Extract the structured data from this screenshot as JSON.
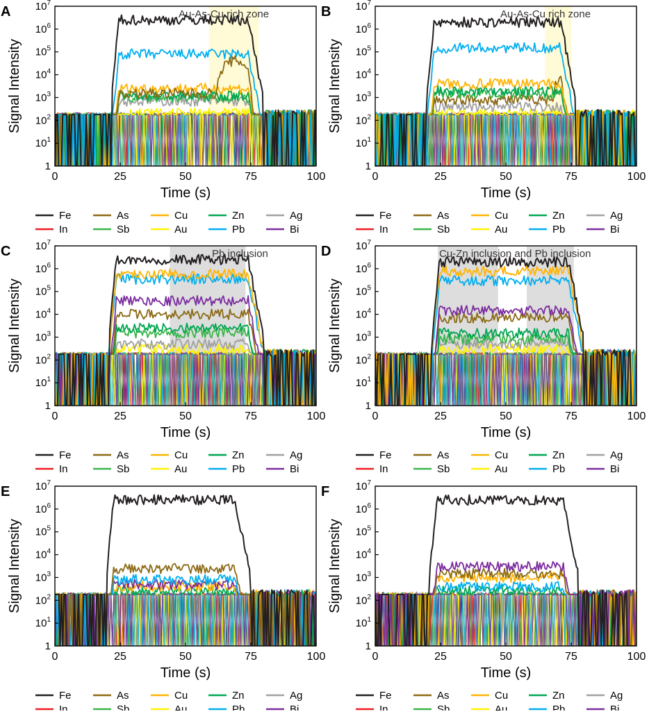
{
  "legend": {
    "rows": [
      [
        {
          "name": "Fe",
          "color": "#231f20"
        },
        {
          "name": "As",
          "color": "#8b6914"
        },
        {
          "name": "Cu",
          "color": "#ffb300"
        },
        {
          "name": "Zn",
          "color": "#00a651"
        },
        {
          "name": "Ag",
          "color": "#a0a0a0"
        }
      ],
      [
        {
          "name": "In",
          "color": "#ed1c24"
        },
        {
          "name": "Sb",
          "color": "#39b54a"
        },
        {
          "name": "Au",
          "color": "#fff200"
        },
        {
          "name": "Pb",
          "color": "#00aeef"
        },
        {
          "name": "Bi",
          "color": "#7b2c9e"
        }
      ]
    ]
  },
  "chart_data": [
    {
      "panel": "A",
      "type": "line",
      "yscale": "log",
      "xlabel": "Time (s)",
      "ylabel": "Signal Intensity",
      "xlim": [
        0,
        100
      ],
      "ylim": [
        1,
        10000000
      ],
      "xticks": [
        "0",
        "25",
        "50",
        "75",
        "100"
      ],
      "yticks": [
        "1",
        "10",
        "100",
        "1000",
        "10000",
        "100000",
        "1000000",
        "10000000"
      ],
      "onset": 22,
      "end": 80,
      "noise_level": 180,
      "highlight": {
        "from": 59,
        "to": 78,
        "color": "#fffbd1",
        "label": "Au-As-Cu rich zone"
      },
      "series": [
        {
          "name": "Fe",
          "level": 2500000,
          "color": "#231f20"
        },
        {
          "name": "Pb",
          "level": 80000,
          "color": "#00aeef"
        },
        {
          "name": "As",
          "level": 1500,
          "color": "#8b6914",
          "bump": {
            "from": 62,
            "to": 76,
            "peak": 40000
          }
        },
        {
          "name": "Cu",
          "level": 2500,
          "color": "#ffb300"
        },
        {
          "name": "Zn",
          "level": 1200,
          "color": "#00a651"
        },
        {
          "name": "Sb",
          "level": 1000,
          "color": "#39b54a"
        },
        {
          "name": "Ag",
          "level": 700,
          "color": "#a0a0a0"
        },
        {
          "name": "Au",
          "level": 200,
          "color": "#fff200"
        }
      ]
    },
    {
      "panel": "B",
      "type": "line",
      "yscale": "log",
      "xlabel": "Time (s)",
      "ylabel": "Signal Intensity",
      "xlim": [
        0,
        100
      ],
      "ylim": [
        1,
        10000000
      ],
      "xticks": [
        "0",
        "25",
        "50",
        "75",
        "100"
      ],
      "yticks": [
        "1",
        "10",
        "100",
        "1000",
        "10000",
        "100000",
        "1000000",
        "10000000"
      ],
      "onset": 20,
      "end": 77,
      "noise_level": 180,
      "highlight": {
        "from": 65,
        "to": 75,
        "color": "#fffbd1",
        "label": "Au-As-Cu rich zone"
      },
      "series": [
        {
          "name": "Fe",
          "level": 2000000,
          "color": "#231f20"
        },
        {
          "name": "Pb",
          "level": 150000,
          "color": "#00aeef"
        },
        {
          "name": "Cu",
          "level": 4000,
          "color": "#ffb300"
        },
        {
          "name": "Zn",
          "level": 2000,
          "color": "#00a651"
        },
        {
          "name": "Sb",
          "level": 1500,
          "color": "#39b54a"
        },
        {
          "name": "As",
          "level": 800,
          "color": "#8b6914",
          "bump": {
            "from": 68,
            "to": 74,
            "peak": 8000
          }
        },
        {
          "name": "Ag",
          "level": 400,
          "color": "#a0a0a0"
        },
        {
          "name": "Au",
          "level": 200,
          "color": "#fff200"
        }
      ]
    },
    {
      "panel": "C",
      "type": "line",
      "yscale": "log",
      "xlabel": "Time (s)",
      "ylabel": "Signal Intensity",
      "xlim": [
        0,
        100
      ],
      "ylim": [
        1,
        10000000
      ],
      "xticks": [
        "0",
        "25",
        "50",
        "75",
        "100"
      ],
      "yticks": [
        "1",
        "10",
        "100",
        "1000",
        "10000",
        "100000",
        "1000000",
        "10000000"
      ],
      "onset": 21,
      "end": 80,
      "noise_level": 180,
      "highlight": {
        "from": 44,
        "to": 73,
        "color": "#d9d9d9",
        "label": "Pb inclusion"
      },
      "series": [
        {
          "name": "Fe",
          "level": 2500000,
          "color": "#231f20"
        },
        {
          "name": "Cu",
          "level": 600000,
          "color": "#ffb300"
        },
        {
          "name": "Pb",
          "level": 350000,
          "color": "#00aeef"
        },
        {
          "name": "Bi",
          "level": 40000,
          "color": "#7b2c9e"
        },
        {
          "name": "As",
          "level": 10000,
          "color": "#8b6914"
        },
        {
          "name": "Zn",
          "level": 2500,
          "color": "#00a651"
        },
        {
          "name": "Sb",
          "level": 1500,
          "color": "#39b54a"
        },
        {
          "name": "Ag",
          "level": 500,
          "color": "#a0a0a0"
        },
        {
          "name": "Au",
          "level": 300,
          "color": "#fff200"
        }
      ]
    },
    {
      "panel": "D",
      "type": "line",
      "yscale": "log",
      "xlabel": "Time (s)",
      "ylabel": "Signal Intensity",
      "xlim": [
        0,
        100
      ],
      "ylim": [
        1,
        10000000
      ],
      "xticks": [
        "0",
        "25",
        "50",
        "75",
        "100"
      ],
      "yticks": [
        "1",
        "10",
        "100",
        "1000",
        "10000",
        "100000",
        "1000000",
        "10000000"
      ],
      "onset": 22,
      "end": 80,
      "noise_level": 180,
      "highlight": {
        "from": 24,
        "to": 76,
        "color": "#d9d9d9",
        "label": "Cu-Zn inclusion and Pb inclusion",
        "gap": [
          47,
          58
        ]
      },
      "series": [
        {
          "name": "Fe",
          "level": 2000000,
          "color": "#231f20"
        },
        {
          "name": "Cu",
          "level": 800000,
          "color": "#ffb300"
        },
        {
          "name": "Pb",
          "level": 300000,
          "color": "#00aeef"
        },
        {
          "name": "Bi",
          "level": 15000,
          "color": "#7b2c9e"
        },
        {
          "name": "As",
          "level": 7000,
          "color": "#8b6914"
        },
        {
          "name": "Zn",
          "level": 1500,
          "color": "#00a651"
        },
        {
          "name": "Sb",
          "level": 800,
          "color": "#39b54a"
        },
        {
          "name": "Ag",
          "level": 500,
          "color": "#a0a0a0"
        },
        {
          "name": "Au",
          "level": 300,
          "color": "#fff200"
        }
      ]
    },
    {
      "panel": "E",
      "type": "line",
      "yscale": "log",
      "xlabel": "Time (s)",
      "ylabel": "Signal Intensity",
      "xlim": [
        0,
        100
      ],
      "ylim": [
        1,
        10000000
      ],
      "xticks": [
        "0",
        "25",
        "50",
        "75",
        "100"
      ],
      "yticks": [
        "1",
        "10",
        "100",
        "1000",
        "10000",
        "100000",
        "1000000",
        "10000000"
      ],
      "onset": 20,
      "end": 75,
      "noise_level": 180,
      "series": [
        {
          "name": "Fe",
          "level": 2500000,
          "color": "#231f20"
        },
        {
          "name": "As",
          "level": 2500,
          "color": "#8b6914"
        },
        {
          "name": "Pb",
          "level": 800,
          "color": "#00aeef"
        },
        {
          "name": "Bi",
          "level": 500,
          "color": "#7b2c9e"
        },
        {
          "name": "Cu",
          "level": 400,
          "color": "#ffb300"
        },
        {
          "name": "Zn",
          "level": 250,
          "color": "#00a651"
        }
      ]
    },
    {
      "panel": "F",
      "type": "line",
      "yscale": "log",
      "xlabel": "Time (s)",
      "ylabel": "Signal Intensity",
      "xlim": [
        0,
        100
      ],
      "ylim": [
        1,
        10000000
      ],
      "xticks": [
        "0",
        "25",
        "50",
        "75",
        "100"
      ],
      "yticks": [
        "1",
        "10",
        "100",
        "1000",
        "10000",
        "100000",
        "1000000",
        "10000000"
      ],
      "onset": 21,
      "end": 78,
      "noise_level": 180,
      "series": [
        {
          "name": "Fe",
          "level": 2500000,
          "color": "#231f20"
        },
        {
          "name": "Bi",
          "level": 3000,
          "color": "#7b2c9e"
        },
        {
          "name": "As",
          "level": 1500,
          "color": "#8b6914"
        },
        {
          "name": "Cu",
          "level": 1000,
          "color": "#ffb300"
        },
        {
          "name": "Pb",
          "level": 400,
          "color": "#00aeef"
        },
        {
          "name": "Zn",
          "level": 250,
          "color": "#00a651"
        }
      ]
    }
  ]
}
